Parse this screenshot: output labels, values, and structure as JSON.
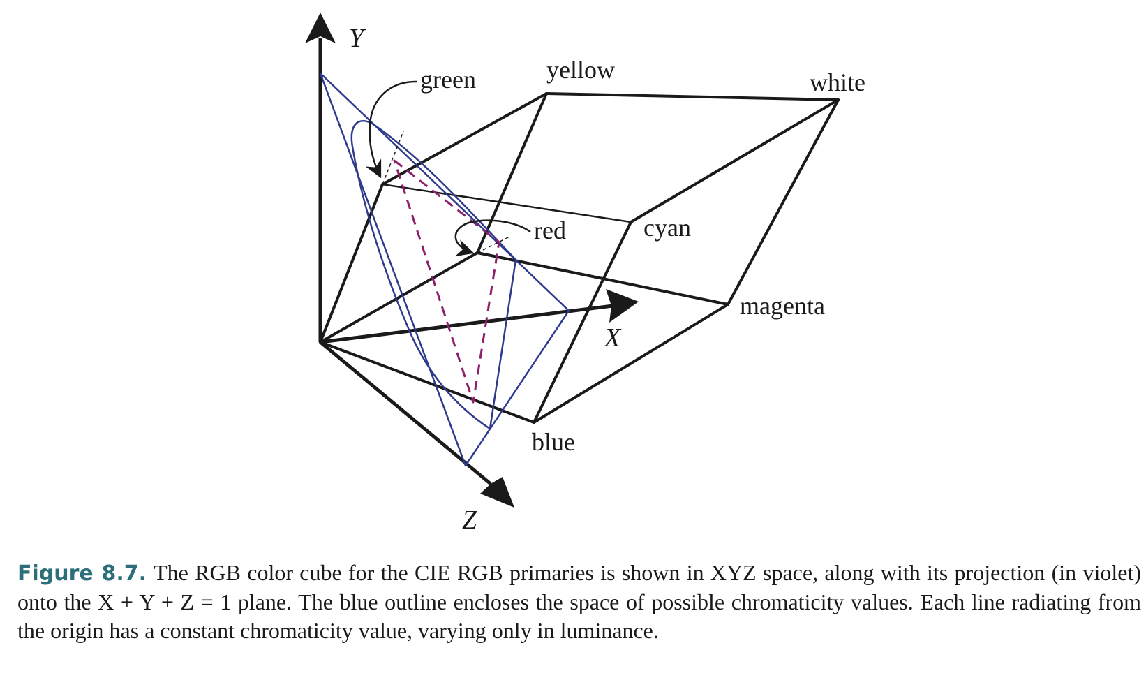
{
  "diagram": {
    "axes": {
      "x": "X",
      "y": "Y",
      "z": "Z"
    },
    "corners": {
      "green": "green",
      "yellow": "yellow",
      "white": "white",
      "red": "red",
      "cyan": "cyan",
      "magenta": "magenta",
      "blue": "blue"
    },
    "colors": {
      "cube_edges": "#1a1a1a",
      "chromaticity_outline": "#2e3a8c",
      "projection": "#8e1f6b"
    }
  },
  "caption": {
    "label": "Figure 8.7.",
    "text": "The RGB color cube for the CIE RGB primaries is shown in XYZ space, along with its projection (in violet) onto the X + Y + Z = 1 plane. The blue outline encloses the space of possible chromaticity values. Each line radiating from the origin has a constant chromaticity value, varying only in luminance."
  }
}
